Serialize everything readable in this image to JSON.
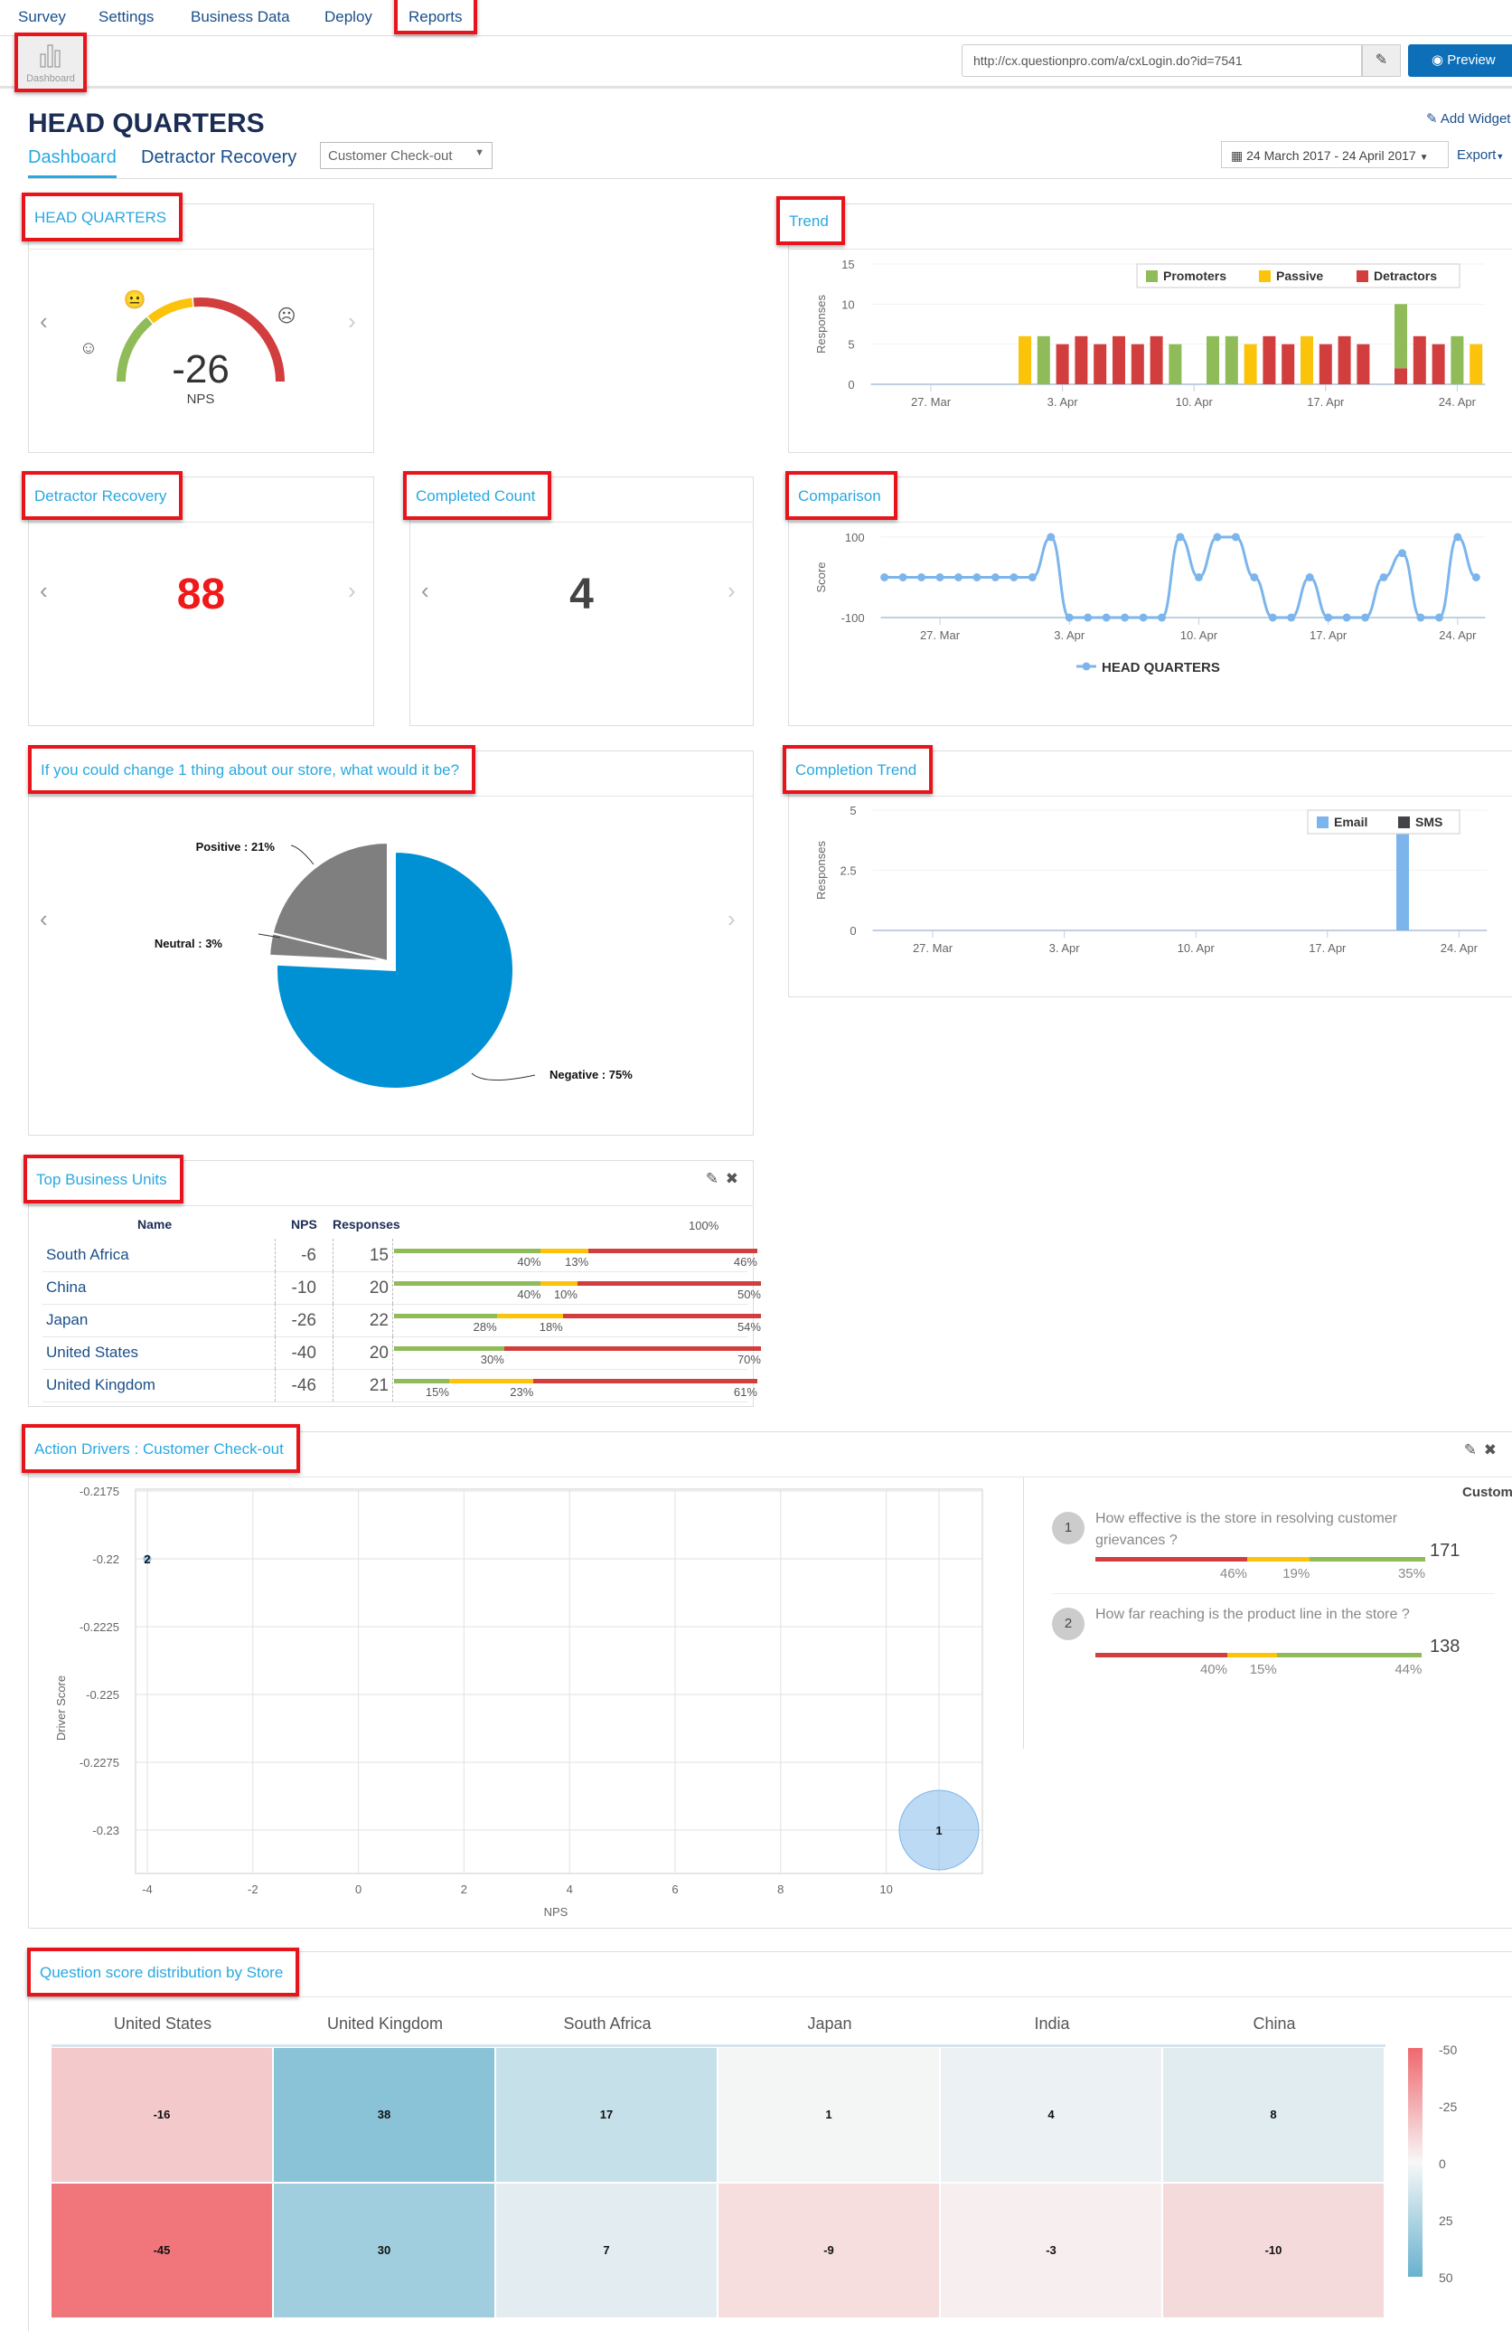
{
  "nav": {
    "items": [
      "Survey",
      "Settings",
      "Business Data",
      "Deploy",
      "Reports"
    ]
  },
  "toolbar": {
    "dashboard_label": "Dashboard",
    "url": "http://cx.questionpro.com/a/cxLogin.do?id=7541",
    "preview_label": "Preview"
  },
  "header": {
    "title": "HEAD QUARTERS",
    "tabs": [
      "Dashboard",
      "Detractor Recovery"
    ],
    "select_value": "Customer Check-out",
    "add_widget": "Add Widget",
    "date_range": "24 March 2017 - 24 April 2017",
    "export": "Export"
  },
  "gauge": {
    "title": "HEAD QUARTERS",
    "value": "-26",
    "label": "NPS"
  },
  "detractor": {
    "title": "Detractor Recovery",
    "value": "88"
  },
  "completed": {
    "title": "Completed Count",
    "value": "4"
  },
  "colors": {
    "promoters": "#8fbb58",
    "passive": "#fbc40a",
    "detractors": "#d23e3e",
    "accent": "#29a8e0",
    "line": "#7cb5ec",
    "pie_negative": "#0090d4",
    "pie_grey": "#7f7f7f"
  },
  "chart_data": [
    {
      "id": "trend",
      "type": "bar",
      "title": "Trend",
      "ylabel": "Responses",
      "ylim": [
        0,
        15
      ],
      "yticks": [
        "0",
        "5",
        "10",
        "15"
      ],
      "xticks": [
        "27. Mar",
        "3. Apr",
        "10. Apr",
        "17. Apr",
        "24. Apr"
      ],
      "legend": [
        "Promoters",
        "Passive",
        "Detractors"
      ],
      "categories": [
        "1 Apr",
        "2 Apr",
        "3 Apr",
        "4 Apr",
        "5 Apr",
        "6 Apr",
        "7 Apr",
        "8 Apr",
        "9 Apr",
        "11 Apr",
        "12 Apr",
        "13 Apr",
        "14 Apr",
        "15 Apr",
        "16 Apr",
        "17 Apr",
        "18 Apr",
        "19 Apr",
        "21 Apr",
        "22 Apr",
        "23 Apr",
        "24 Apr",
        "25 Apr"
      ],
      "day_index": [
        8,
        9,
        10,
        11,
        12,
        13,
        14,
        15,
        16,
        18,
        19,
        20,
        21,
        22,
        23,
        24,
        25,
        26,
        28,
        29,
        30,
        31,
        32
      ],
      "series": [
        {
          "name": "Promoters",
          "values": [
            0,
            6,
            0,
            0,
            0,
            0,
            0,
            0,
            5,
            6,
            6,
            0,
            0,
            0,
            0,
            0,
            0,
            0,
            8,
            0,
            0,
            6,
            0
          ]
        },
        {
          "name": "Passive",
          "values": [
            6,
            0,
            0,
            0,
            0,
            0,
            0,
            0,
            0,
            0,
            0,
            5,
            0,
            0,
            6,
            0,
            0,
            0,
            0,
            0,
            0,
            0,
            5
          ]
        },
        {
          "name": "Detractors",
          "values": [
            0,
            0,
            5,
            6,
            5,
            6,
            5,
            6,
            0,
            0,
            0,
            0,
            6,
            5,
            0,
            5,
            6,
            5,
            2,
            6,
            5,
            0,
            0
          ]
        }
      ]
    },
    {
      "id": "comparison",
      "type": "line",
      "title": "Comparison",
      "ylabel": "Score",
      "ylim": [
        -100,
        100
      ],
      "yticks": [
        "-100",
        "100"
      ],
      "xticks": [
        "27. Mar",
        "3. Apr",
        "10. Apr",
        "17. Apr",
        "24. Apr"
      ],
      "legend": [
        "HEAD QUARTERS"
      ],
      "x_start": "24 Mar",
      "values": [
        0,
        0,
        0,
        0,
        0,
        0,
        0,
        0,
        0,
        100,
        -100,
        -100,
        -100,
        -100,
        -100,
        -100,
        100,
        0,
        100,
        100,
        0,
        -100,
        -100,
        0,
        -100,
        -100,
        -100,
        0,
        60,
        -100,
        -100,
        100,
        0
      ]
    },
    {
      "id": "pie",
      "type": "pie",
      "title": "If you could change 1 thing about our store, what would it be?",
      "slices": [
        {
          "label": "Negative : 75%",
          "name": "Negative",
          "value": 75
        },
        {
          "label": "Neutral : 3%",
          "name": "Neutral",
          "value": 3
        },
        {
          "label": "Positive : 21%",
          "name": "Positive",
          "value": 21
        }
      ]
    },
    {
      "id": "completion",
      "type": "bar",
      "title": "Completion Trend",
      "ylabel": "Responses",
      "ylim": [
        0,
        5
      ],
      "yticks": [
        "0",
        "2.5",
        "5"
      ],
      "xticks": [
        "27. Mar",
        "3. Apr",
        "10. Apr",
        "17. Apr",
        "24. Apr"
      ],
      "legend": [
        "Email",
        "SMS"
      ],
      "series": [
        {
          "name": "Email",
          "day_index": [
            28
          ],
          "values": [
            4
          ]
        },
        {
          "name": "SMS",
          "day_index": [],
          "values": []
        }
      ]
    },
    {
      "id": "drivers",
      "type": "scatter",
      "title": "Action Drivers : Customer Check-out",
      "xlabel": "NPS",
      "ylabel": "Driver Score",
      "xticks": [
        "-4",
        "-2",
        "0",
        "2",
        "4",
        "6",
        "8",
        "10"
      ],
      "yticks": [
        "-0.2175",
        "-0.22",
        "-0.2225",
        "-0.225",
        "-0.2275",
        "-0.23"
      ],
      "points": [
        {
          "label": "2",
          "x": -4,
          "y": -0.22,
          "size": 171
        },
        {
          "label": "1",
          "x": 11,
          "y": -0.23,
          "size": 138
        }
      ]
    },
    {
      "id": "heatmap",
      "type": "heatmap",
      "title": "Question score distribution by Store",
      "columns": [
        "United States",
        "United Kingdom",
        "South Africa",
        "Japan",
        "India",
        "China"
      ],
      "rows": [
        [
          -16,
          38,
          17,
          1,
          4,
          8
        ],
        [
          -45,
          30,
          7,
          -9,
          -3,
          -10
        ]
      ],
      "scale": [
        "-50",
        "-25",
        "0",
        "25",
        "50"
      ]
    }
  ],
  "units": {
    "title": "Top Business Units",
    "headers": [
      "Name",
      "NPS",
      "Responses",
      "100%"
    ],
    "rows": [
      {
        "name": "South Africa",
        "nps": "-6",
        "responses": "15",
        "p": 40,
        "pa": 13,
        "d": 46,
        "pl": "40%",
        "pal": "13%",
        "dl": "46%"
      },
      {
        "name": "China",
        "nps": "-10",
        "responses": "20",
        "p": 40,
        "pa": 10,
        "d": 50,
        "pl": "40%",
        "pal": "10%",
        "dl": "50%"
      },
      {
        "name": "Japan",
        "nps": "-26",
        "responses": "22",
        "p": 28,
        "pa": 18,
        "d": 54,
        "pl": "28%",
        "pal": "18%",
        "dl": "54%"
      },
      {
        "name": "United States",
        "nps": "-40",
        "responses": "20",
        "p": 30,
        "pa": 0,
        "d": 70,
        "pl": "30%",
        "pal": "",
        "dl": "70%"
      },
      {
        "name": "United Kingdom",
        "nps": "-46",
        "responses": "21",
        "p": 15,
        "pa": 23,
        "d": 61,
        "pl": "15%",
        "pal": "23%",
        "dl": "61%"
      }
    ]
  },
  "drivers_list": {
    "header": "Customers",
    "items": [
      {
        "num": "1",
        "question": "How effective is the store in resolving customer grievances ?",
        "count": "171",
        "d": 46,
        "pa": 19,
        "p": 35,
        "dl": "46%",
        "pal": "19%",
        "pl": "35%"
      },
      {
        "num": "2",
        "question": "How far reaching is the product line in the store ?",
        "count": "138",
        "d": 40,
        "pa": 15,
        "p": 44,
        "dl": "40%",
        "pal": "15%",
        "pl": "44%"
      }
    ]
  }
}
